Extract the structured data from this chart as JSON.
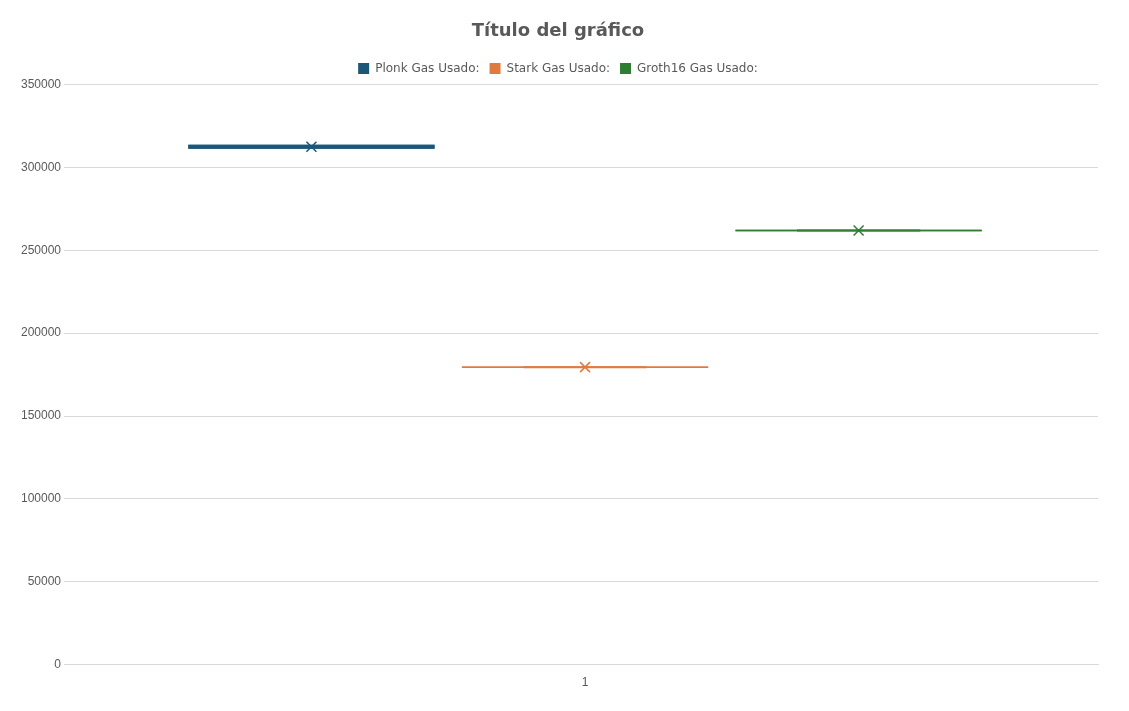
{
  "chart_data": {
    "type": "box",
    "title": "Título del gráfico",
    "categories": [
      "1"
    ],
    "series": [
      {
        "name": "Plonk Gas Usado:",
        "color": "#1b5777",
        "boxes": [
          {
            "low": 312500,
            "q1": 312500,
            "median": 312500,
            "q3": 312500,
            "high": 312500,
            "mean": 312500
          }
        ]
      },
      {
        "name": "Stark Gas Usado:",
        "color": "#e07b40",
        "boxes": [
          {
            "low": 179500,
            "q1": 179500,
            "median": 179500,
            "q3": 179500,
            "high": 179500,
            "mean": 179500
          }
        ]
      },
      {
        "name": "Groth16 Gas Usado:",
        "color": "#2e7d32",
        "boxes": [
          {
            "low": 262000,
            "q1": 262000,
            "median": 262000,
            "q3": 262000,
            "high": 262000,
            "mean": 262000
          }
        ]
      }
    ],
    "ylim": [
      0,
      350000
    ],
    "yticks": [
      0,
      50000,
      100000,
      150000,
      200000,
      250000,
      300000,
      350000
    ],
    "grid": "y",
    "legend": "top",
    "marker": "cross"
  }
}
